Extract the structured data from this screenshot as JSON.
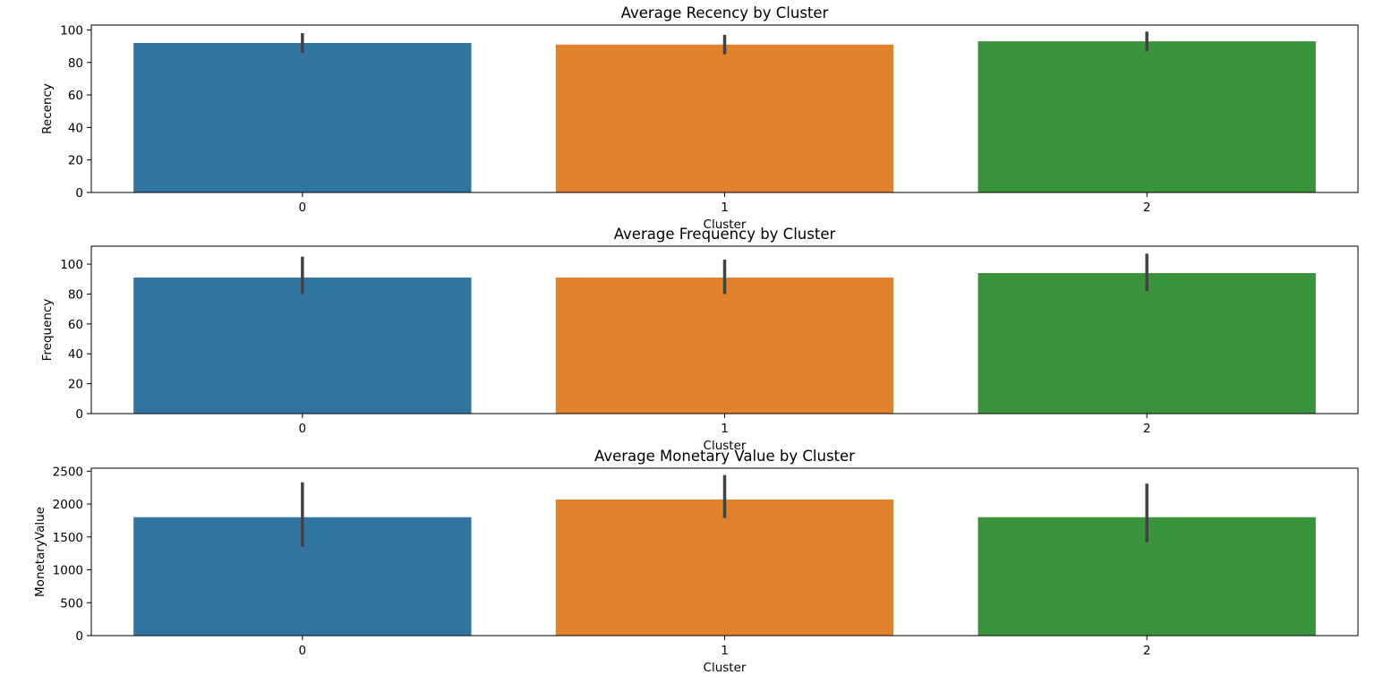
{
  "chart_data": [
    {
      "type": "bar",
      "title": "Average Recency by Cluster",
      "xlabel": "Cluster",
      "ylabel": "Recency",
      "categories": [
        "0",
        "1",
        "2"
      ],
      "values": [
        92,
        91,
        93
      ],
      "error_low": [
        86,
        85,
        87
      ],
      "error_high": [
        98,
        97,
        99
      ],
      "ylim": [
        0,
        103
      ],
      "yticks": [
        0,
        20,
        40,
        60,
        80,
        100
      ],
      "colors": [
        "#3274a1",
        "#e1812c",
        "#3a923a"
      ],
      "grid": false,
      "legend": "none"
    },
    {
      "type": "bar",
      "title": "Average Frequency by Cluster",
      "xlabel": "Cluster",
      "ylabel": "Frequency",
      "categories": [
        "0",
        "1",
        "2"
      ],
      "values": [
        91,
        91,
        94
      ],
      "error_low": [
        80,
        80,
        82
      ],
      "error_high": [
        105,
        103,
        107
      ],
      "ylim": [
        0,
        112
      ],
      "yticks": [
        0,
        20,
        40,
        60,
        80,
        100
      ],
      "colors": [
        "#3274a1",
        "#e1812c",
        "#3a923a"
      ],
      "grid": false,
      "legend": "none"
    },
    {
      "type": "bar",
      "title": "Average Monetary Value by Cluster",
      "xlabel": "Cluster",
      "ylabel": "MonetaryValue",
      "categories": [
        "0",
        "1",
        "2"
      ],
      "values": [
        1800,
        2070,
        1800
      ],
      "error_low": [
        1350,
        1790,
        1420
      ],
      "error_high": [
        2330,
        2440,
        2310
      ],
      "ylim": [
        0,
        2545
      ],
      "yticks": [
        0,
        500,
        1000,
        1500,
        2000,
        2500
      ],
      "colors": [
        "#3274a1",
        "#e1812c",
        "#3a923a"
      ],
      "grid": false,
      "legend": "none"
    }
  ]
}
